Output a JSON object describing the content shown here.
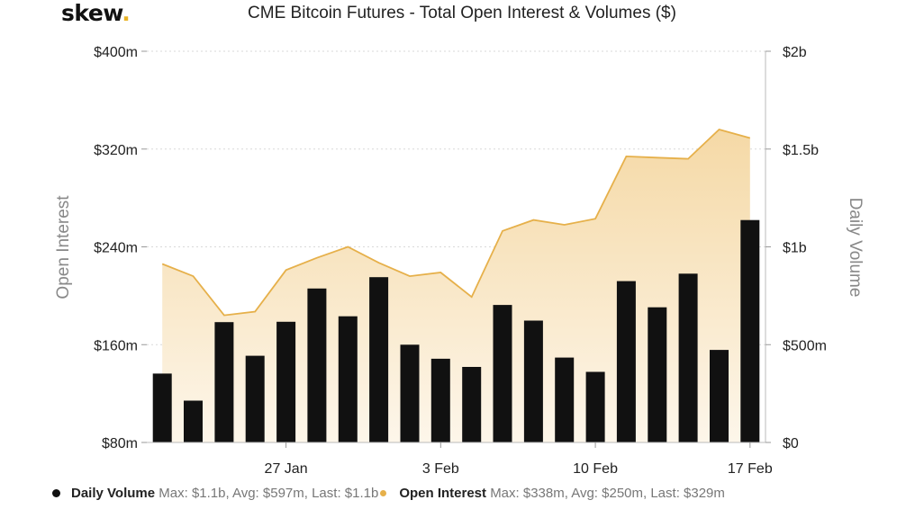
{
  "brand": {
    "name": "skew",
    "dot": "."
  },
  "colors": {
    "bar": "#111111",
    "line": "#e6b04a",
    "area_top": "#f5d9a6",
    "area_bottom": "#fdf6ea",
    "grid": "#d9d9d9"
  },
  "chart_data": {
    "type": "bar",
    "title": "CME Bitcoin Futures - Total Open Interest & Volumes ($)",
    "y_left": {
      "label": "Open Interest",
      "ticks": [
        "$80m",
        "$160m",
        "$240m",
        "$320m",
        "$400m"
      ],
      "range": [
        80,
        400
      ]
    },
    "y_right": {
      "label": "Daily Volume",
      "ticks": [
        "$0",
        "$500m",
        "$1b",
        "$1.5b",
        "$2b"
      ],
      "range": [
        0,
        2000
      ]
    },
    "x_ticks": [
      {
        "label": "27 Jan",
        "index": 4
      },
      {
        "label": "3 Feb",
        "index": 9
      },
      {
        "label": "10 Feb",
        "index": 14
      },
      {
        "label": "17 Feb",
        "index": 19
      }
    ],
    "series": [
      {
        "name": "Daily Volume",
        "type": "bar",
        "axis": "right",
        "values": [
          352,
          214,
          615,
          443,
          617,
          787,
          645,
          845,
          500,
          428,
          386,
          703,
          623,
          434,
          361,
          825,
          691,
          863,
          473,
          1137
        ]
      },
      {
        "name": "Open Interest",
        "type": "area",
        "axis": "left",
        "values": [
          226,
          216,
          184,
          187,
          221,
          231,
          240,
          227,
          216,
          219,
          199,
          253,
          262,
          258,
          263,
          314,
          313,
          312,
          336,
          329
        ]
      }
    ],
    "legend": [
      {
        "name": "Daily Volume",
        "stats": "Max: $1.1b, Avg: $597m, Last: $1.1b"
      },
      {
        "name": "Open Interest",
        "stats": "Max: $338m, Avg: $250m, Last: $329m"
      }
    ]
  }
}
